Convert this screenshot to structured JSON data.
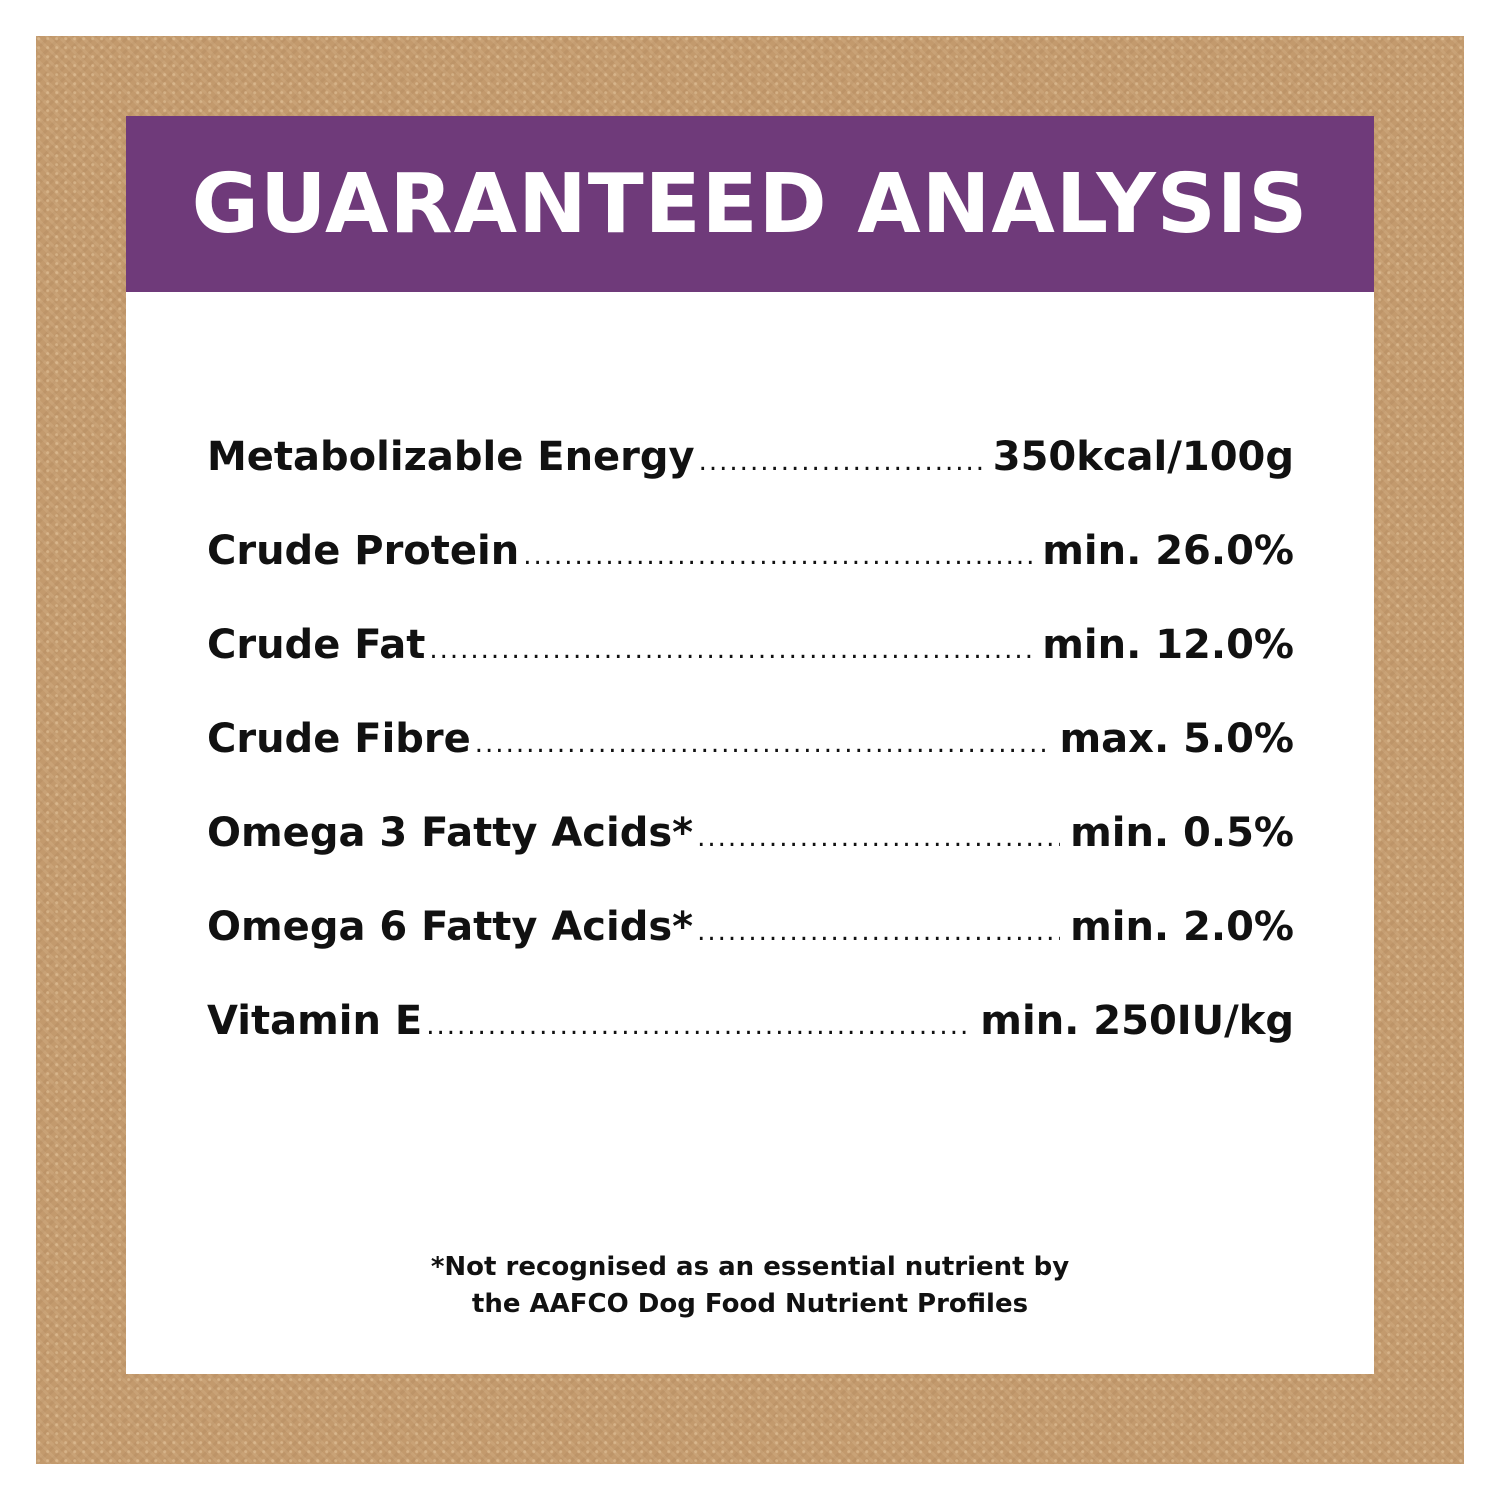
{
  "title": "GUARANTEED ANALYSIS",
  "rows": [
    {
      "label": "Metabolizable Energy",
      "value": "350kcal/100g"
    },
    {
      "label": "Crude Protein",
      "value": "min. 26.0%"
    },
    {
      "label": "Crude Fat",
      "value": "min. 12.0%"
    },
    {
      "label": "Crude Fibre",
      "value": "max. 5.0%"
    },
    {
      "label": "Omega 3 Fatty Acids*",
      "value": "min. 0.5%"
    },
    {
      "label": "Omega 6 Fatty Acids*",
      "value": "min. 2.0%"
    },
    {
      "label": "Vitamin E",
      "value": "min. 250IU/kg"
    }
  ],
  "footnote": {
    "line1": "*Not recognised as an essential nutrient by",
    "line2": "the AAFCO Dog Food Nutrient Profiles"
  },
  "colors": {
    "header": "#6f3a7a",
    "frame": "#c39a6d"
  }
}
